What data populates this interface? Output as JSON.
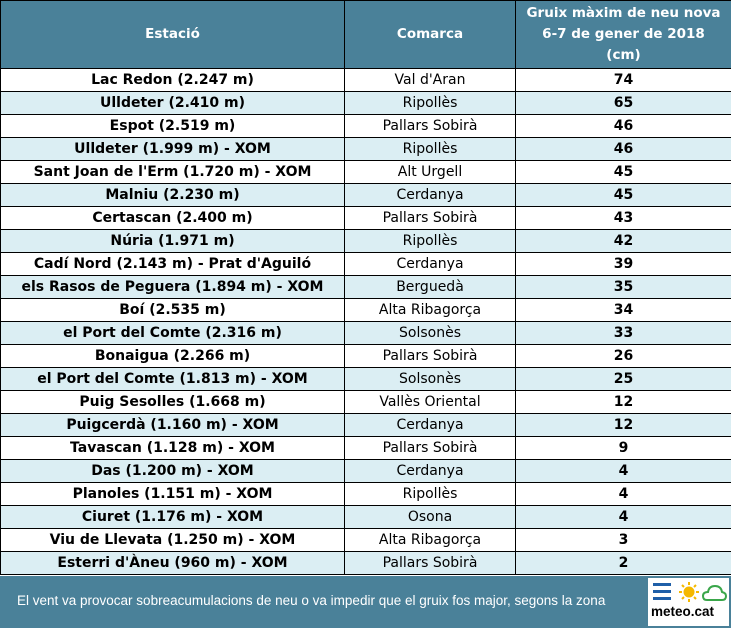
{
  "table": {
    "headers": {
      "station": "Estació",
      "region": "Comarca",
      "snow_line1": "Gruix màxim de neu nova",
      "snow_line2": "6-7 de gener de 2018",
      "snow_line3": "(cm)"
    },
    "rows": [
      {
        "station": "Lac Redon (2.247 m)",
        "region": "Val d'Aran",
        "value": "74"
      },
      {
        "station": "Ulldeter (2.410 m)",
        "region": "Ripollès",
        "value": "65"
      },
      {
        "station": "Espot (2.519 m)",
        "region": "Pallars Sobirà",
        "value": "46"
      },
      {
        "station": "Ulldeter (1.999 m) - XOM",
        "region": "Ripollès",
        "value": "46"
      },
      {
        "station": "Sant Joan de l'Erm (1.720 m) - XOM",
        "region": "Alt Urgell",
        "value": "45"
      },
      {
        "station": "Malniu (2.230 m)",
        "region": "Cerdanya",
        "value": "45"
      },
      {
        "station": "Certascan (2.400 m)",
        "region": "Pallars Sobirà",
        "value": "43"
      },
      {
        "station": "Núria (1.971 m)",
        "region": "Ripollès",
        "value": "42"
      },
      {
        "station": "Cadí Nord (2.143 m) - Prat d'Aguiló",
        "region": "Cerdanya",
        "value": "39"
      },
      {
        "station": "els Rasos de Peguera (1.894 m) - XOM",
        "region": "Berguedà",
        "value": "35"
      },
      {
        "station": "Boí (2.535 m)",
        "region": "Alta Ribagorça",
        "value": "34"
      },
      {
        "station": "el Port del Comte (2.316 m)",
        "region": "Solsonès",
        "value": "33"
      },
      {
        "station": "Bonaigua (2.266 m)",
        "region": "Pallars Sobirà",
        "value": "26"
      },
      {
        "station": "el Port del Comte (1.813 m) - XOM",
        "region": "Solsonès",
        "value": "25"
      },
      {
        "station": "Puig Sesolles (1.668 m)",
        "region": "Vallès Oriental",
        "value": "12"
      },
      {
        "station": "Puigcerdà (1.160 m) - XOM",
        "region": "Cerdanya",
        "value": "12"
      },
      {
        "station": "Tavascan (1.128 m) - XOM",
        "region": "Pallars Sobirà",
        "value": "9"
      },
      {
        "station": "Das (1.200 m) - XOM",
        "region": "Cerdanya",
        "value": "4"
      },
      {
        "station": "Planoles (1.151 m) - XOM",
        "region": "Ripollès",
        "value": "4"
      },
      {
        "station": "Ciuret (1.176 m) - XOM",
        "region": "Osona",
        "value": "4"
      },
      {
        "station": "Viu de Llevata (1.250 m) - XOM",
        "region": "Alta Ribagorça",
        "value": "3"
      },
      {
        "station": "Esterri d'Àneu (960 m) - XOM",
        "region": "Pallars Sobirà",
        "value": "2"
      }
    ]
  },
  "footer": {
    "note": "El vent va provocar sobreacumulacions de neu o va impedir que el gruix fos major, segons la zona",
    "brand": "meteo.cat"
  },
  "colors": {
    "header_bg": "#4a8199",
    "row_alt": "#dbeef3",
    "sun": "#f5b800",
    "cloud": "#3aa64a",
    "bars": "#1f5fa8"
  }
}
